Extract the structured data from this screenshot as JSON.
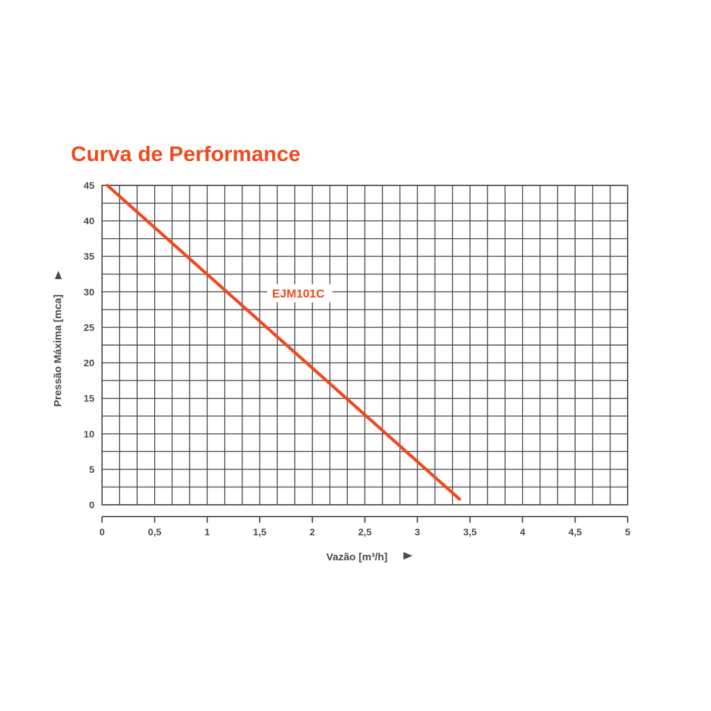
{
  "chart_data": {
    "type": "line",
    "title": "Curva de Performance",
    "xlabel": "Vazão [m³/h]",
    "ylabel": "Pressão Máxima [mca]",
    "xlim": [
      0,
      5
    ],
    "ylim": [
      0,
      45
    ],
    "xticks": [
      "0",
      "0,5",
      "1",
      "1,5",
      "2",
      "2,5",
      "3",
      "3,5",
      "4",
      "4,5",
      "5"
    ],
    "yticks": [
      "0",
      "5",
      "10",
      "15",
      "20",
      "25",
      "30",
      "35",
      "40",
      "45"
    ],
    "grid": true,
    "series": [
      {
        "name": "EJM101C",
        "color": "#f04a1e",
        "x": [
          0.05,
          3.4
        ],
        "y": [
          45,
          0.8
        ]
      }
    ],
    "colors": {
      "title": "#f04a1e",
      "series": "#f04a1e",
      "grid": "#4a4a4f",
      "text": "#4a4a4f"
    }
  }
}
